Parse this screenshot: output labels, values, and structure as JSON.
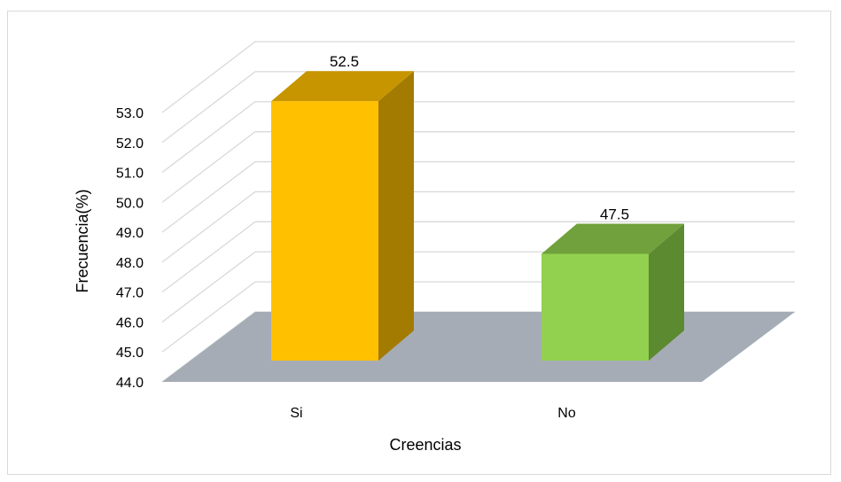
{
  "chart_data": {
    "type": "bar",
    "categories": [
      "Si",
      "No"
    ],
    "values": [
      52.5,
      47.5
    ],
    "data_labels": [
      "52.5",
      "47.5"
    ],
    "title": "",
    "xlabel": "Creencias",
    "ylabel": "Frecuencia(%)",
    "ylim": [
      44.0,
      53.0
    ],
    "yticks": [
      "44.0",
      "45.0",
      "46.0",
      "47.0",
      "48.0",
      "49.0",
      "50.0",
      "51.0",
      "52.0",
      "53.0"
    ],
    "grid": true,
    "legend": "none",
    "style": "3d-column",
    "colors": {
      "bars": [
        {
          "front": "#ffc000",
          "top": "#c69500",
          "side": "#a37b00"
        },
        {
          "front": "#92d050",
          "top": "#70a13c",
          "side": "#5c8a30"
        }
      ],
      "floor": "#a6acb6",
      "gridlines": "#d9d9d9"
    }
  }
}
